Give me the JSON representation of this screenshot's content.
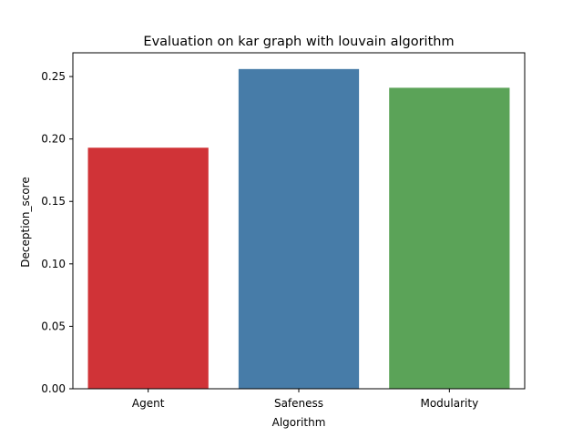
{
  "chart_data": {
    "type": "bar",
    "title": "Evaluation on kar graph with louvain algorithm",
    "xlabel": "Algorithm",
    "ylabel": "Deception_score",
    "categories": [
      "Agent",
      "Safeness",
      "Modularity"
    ],
    "values": [
      0.193,
      0.256,
      0.241
    ],
    "colors": [
      "#d03337",
      "#477ca8",
      "#5ba358"
    ],
    "ylim": [
      0,
      0.269
    ],
    "yticks": [
      0.0,
      0.05,
      0.1,
      0.15,
      0.2,
      0.25
    ],
    "ytick_labels": [
      "0.00",
      "0.05",
      "0.10",
      "0.15",
      "0.20",
      "0.25"
    ],
    "grid": false,
    "legend": "none"
  }
}
